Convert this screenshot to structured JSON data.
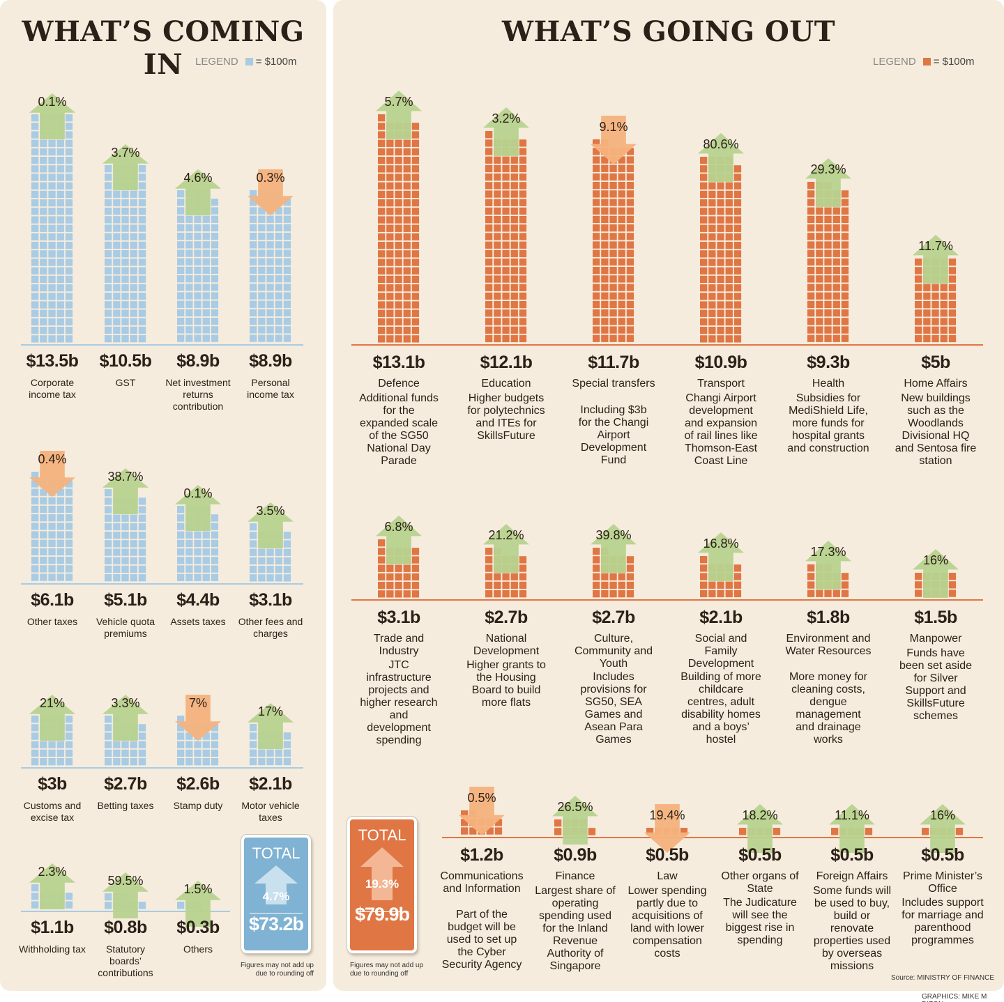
{
  "coming_in": {
    "title": "WHAT’S COMING IN",
    "legend_label": "LEGEND",
    "legend_unit": "= $100m",
    "block_color": "#a9cbe3",
    "total": {
      "label": "TOTAL",
      "pct": "4.7%",
      "amount": "$73.2b",
      "direction": "up"
    },
    "note": "Figures may not add up due to rounding off"
  },
  "going_out": {
    "title": "WHAT’S GOING OUT",
    "legend_label": "LEGEND",
    "legend_unit": "= $100m",
    "block_color": "#e07644",
    "total": {
      "label": "TOTAL",
      "pct": "19.3%",
      "amount": "$79.9b",
      "direction": "up"
    },
    "note": "Figures may not add up due to rounding off"
  },
  "source": "Source: MINISTRY OF FINANCE",
  "credit": "GRAPHICS: MIKE M DIZON",
  "colors": {
    "up_arrow": "#b7d28e",
    "down_arrow": "#f4b27d",
    "panel_bg": "#f5ecdd",
    "category_red": "#b31b1b"
  },
  "chart_data": [
    {
      "type": "bar",
      "title": "WHAT’S COMING IN",
      "unit": "$b",
      "block_value": "$100m",
      "categories": [
        "Corporate income tax",
        "GST",
        "Net investment returns contribution",
        "Personal income tax",
        "Other taxes",
        "Vehicle quota premiums",
        "Assets taxes",
        "Other fees and charges",
        "Customs and excise tax",
        "Betting taxes",
        "Stamp duty",
        "Motor vehicle taxes",
        "Withholding tax",
        "Statutory boards’ contributions",
        "Others"
      ],
      "values": [
        13.5,
        10.5,
        8.9,
        8.9,
        6.1,
        5.1,
        4.4,
        3.1,
        3.0,
        2.7,
        2.6,
        2.1,
        1.1,
        0.8,
        0.3
      ],
      "amount_labels": [
        "$13.5b",
        "$10.5b",
        "$8.9b",
        "$8.9b",
        "$6.1b",
        "$5.1b",
        "$4.4b",
        "$3.1b",
        "$3b",
        "$2.7b",
        "$2.6b",
        "$2.1b",
        "$1.1b",
        "$0.8b",
        "$0.3b"
      ],
      "change_labels": [
        "0.1%",
        "3.7%",
        "4.6%",
        "0.3%",
        "0.4%",
        "38.7%",
        "0.1%",
        "3.5%",
        "21%",
        "3.3%",
        "7%",
        "17%",
        "2.3%",
        "59.5%",
        "1.5%"
      ],
      "directions": [
        "up",
        "up",
        "up",
        "down",
        "down",
        "up",
        "up",
        "up",
        "up",
        "up",
        "down",
        "up",
        "up",
        "up",
        "up"
      ]
    },
    {
      "type": "bar",
      "title": "WHAT’S GOING OUT",
      "unit": "$b",
      "block_value": "$100m",
      "categories": [
        "Defence",
        "Education",
        "Special transfers",
        "Transport",
        "Health",
        "Home Affairs",
        "Trade and Industry",
        "National Development",
        "Culture, Community and Youth",
        "Social and Family Development",
        "Environment and Water Resources",
        "Manpower",
        "Communications and Information",
        "Finance",
        "Law",
        "Other organs of State",
        "Foreign Affairs",
        "Prime Minister’s Office"
      ],
      "values": [
        13.1,
        12.1,
        11.7,
        10.9,
        9.3,
        5.0,
        3.1,
        2.7,
        2.7,
        2.1,
        1.8,
        1.5,
        1.2,
        0.9,
        0.5,
        0.5,
        0.5,
        0.5
      ],
      "amount_labels": [
        "$13.1b",
        "$12.1b",
        "$11.7b",
        "$10.9b",
        "$9.3b",
        "$5b",
        "$3.1b",
        "$2.7b",
        "$2.7b",
        "$2.1b",
        "$1.8b",
        "$1.5b",
        "$1.2b",
        "$0.9b",
        "$0.5b",
        "$0.5b",
        "$0.5b",
        "$0.5b"
      ],
      "change_labels": [
        "5.7%",
        "3.2%",
        "9.1%",
        "80.6%",
        "29.3%",
        "11.7%",
        "6.8%",
        "21.2%",
        "39.8%",
        "16.8%",
        "17.3%",
        "16%",
        "0.5%",
        "26.5%",
        "19.4%",
        "18.2%",
        "11.1%",
        "16%"
      ],
      "directions": [
        "up",
        "up",
        "down",
        "up",
        "up",
        "up",
        "up",
        "up",
        "up",
        "up",
        "up",
        "up",
        "down",
        "up",
        "down",
        "up",
        "up",
        "up"
      ],
      "descriptions": [
        "Additional funds for the expanded scale of the SG50 National Day Parade",
        "Higher budgets for polytechnics and ITEs for SkillsFuture",
        "Including $3b for the Changi Airport Development Fund",
        "Changi Airport development and expansion of rail lines like Thomson-East Coast Line",
        "Subsidies for MediShield Life, more funds for hospital grants and construction",
        "New buildings such as the Woodlands Divisional HQ and Sentosa fire station",
        "JTC infrastructure projects and higher research and development spending",
        "Higher grants to the Housing Board to build more flats",
        "Includes provisions for SG50, SEA Games and Asean Para Games",
        "Building of more childcare centres, adult disability homes and a boys’ hostel",
        "More money for cleaning costs, dengue management and drainage works",
        "Funds have been set aside for Silver Support and SkillsFuture schemes",
        "Part of the budget will be used to set up the Cyber Security Agency",
        "Largest share of operating spending used for the Inland Revenue Authority of Singapore",
        "Lower spending partly due to acquisitions of land with lower compensation costs",
        "The Judicature will see the biggest rise in spending",
        "Some funds will be used to buy, build or renovate properties used by overseas missions",
        "Includes support for marriage and parenthood programmes"
      ]
    }
  ]
}
